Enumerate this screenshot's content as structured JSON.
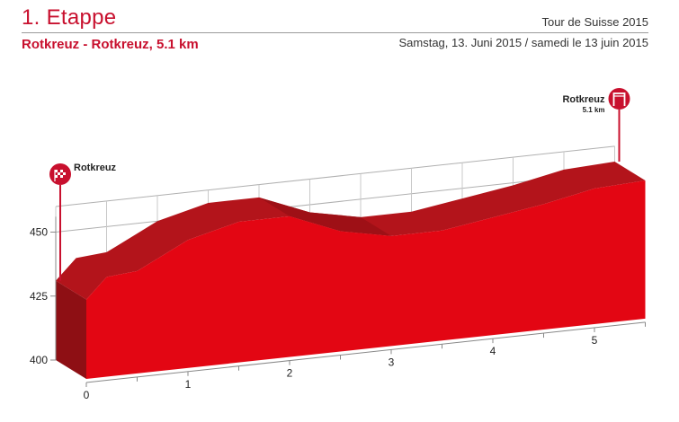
{
  "header": {
    "stage_title": "1. Etappe",
    "tour_name": "Tour de Suisse 2015",
    "route": "Rotkreuz - Rotkreuz, 5.1 km",
    "date": "Samstag, 13. Juni 2015 / samedi le 13 juin 2015"
  },
  "colors": {
    "accent": "#c8102e",
    "fill_front": "#e30613",
    "fill_top": "#b3141b"
  },
  "chart_data": {
    "type": "area",
    "title": "1. Etappe",
    "subtitle": "Rotkreuz - Rotkreuz, 5.1 km",
    "xlabel": "",
    "ylabel": "",
    "xlim": [
      0,
      5.5
    ],
    "ylim": [
      400,
      460
    ],
    "x_ticks": [
      "0",
      "1",
      "2",
      "3",
      "4",
      "5"
    ],
    "y_ticks": [
      "400",
      "425",
      "450"
    ],
    "grid": true,
    "series": [
      {
        "x": [
          0,
          0.2,
          0.5,
          1.0,
          1.5,
          2.0,
          2.5,
          3.0,
          3.5,
          4.0,
          4.5,
          5.0,
          5.5
        ],
        "y": [
          431,
          439,
          440,
          450,
          455,
          455,
          447,
          443,
          443,
          446,
          449,
          453,
          454
        ]
      }
    ],
    "annotations": [
      {
        "label": "Rotkreuz",
        "icon": "start-flag-icon"
      },
      {
        "label": "Rotkreuz",
        "sublabel": "5.1 km",
        "icon": "finish-arch-icon"
      }
    ]
  }
}
